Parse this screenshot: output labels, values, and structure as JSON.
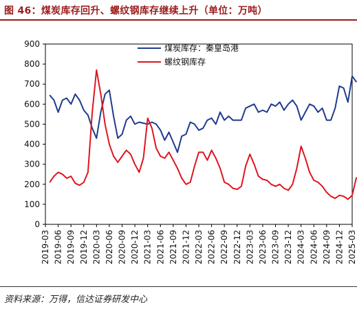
{
  "title": "图 46：煤炭库存回升、螺纹钢库存继续上升（单位：万吨）",
  "source": "资料来源：万得，信达证券研发中心",
  "chart_data": {
    "type": "line",
    "x_ticks": [
      "2019-03",
      "2019-06",
      "2019-09",
      "2019-12",
      "2020-03",
      "2020-06",
      "2020-09",
      "2020-12",
      "2021-03",
      "2021-06",
      "2021-09",
      "2021-12",
      "2022-03",
      "2022-06",
      "2022-09",
      "2022-12",
      "2023-03",
      "2023-06",
      "2023-09",
      "2023-12",
      "2024-03",
      "2024-06",
      "2024-09",
      "2024-12",
      "2025-03"
    ],
    "ylim": [
      0,
      900
    ],
    "y_ticks": [
      0,
      100,
      200,
      300,
      400,
      500,
      600,
      700,
      800,
      900
    ],
    "legend_position": "top-center",
    "series": [
      {
        "name": "煤炭库存：秦皇岛港",
        "color": "#1f3a8f",
        "points": [
          [
            "2019-04",
            645
          ],
          [
            "2019-05",
            620
          ],
          [
            "2019-06",
            560
          ],
          [
            "2019-07",
            620
          ],
          [
            "2019-08",
            630
          ],
          [
            "2019-09",
            600
          ],
          [
            "2019-10",
            650
          ],
          [
            "2019-11",
            620
          ],
          [
            "2019-12",
            570
          ],
          [
            "2020-01",
            545
          ],
          [
            "2020-02",
            480
          ],
          [
            "2020-03",
            430
          ],
          [
            "2020-04",
            560
          ],
          [
            "2020-05",
            650
          ],
          [
            "2020-06",
            670
          ],
          [
            "2020-07",
            540
          ],
          [
            "2020-08",
            430
          ],
          [
            "2020-09",
            450
          ],
          [
            "2020-10",
            520
          ],
          [
            "2020-11",
            540
          ],
          [
            "2020-12",
            500
          ],
          [
            "2021-01",
            510
          ],
          [
            "2021-02",
            505
          ],
          [
            "2021-03",
            500
          ],
          [
            "2021-04",
            510
          ],
          [
            "2021-05",
            500
          ],
          [
            "2021-06",
            470
          ],
          [
            "2021-07",
            420
          ],
          [
            "2021-08",
            460
          ],
          [
            "2021-09",
            410
          ],
          [
            "2021-10",
            360
          ],
          [
            "2021-11",
            440
          ],
          [
            "2021-12",
            450
          ],
          [
            "2022-01",
            510
          ],
          [
            "2022-02",
            500
          ],
          [
            "2022-03",
            470
          ],
          [
            "2022-04",
            480
          ],
          [
            "2022-05",
            520
          ],
          [
            "2022-06",
            530
          ],
          [
            "2022-07",
            500
          ],
          [
            "2022-08",
            560
          ],
          [
            "2022-09",
            520
          ],
          [
            "2022-10",
            540
          ],
          [
            "2022-11",
            520
          ],
          [
            "2022-12",
            520
          ],
          [
            "2023-01",
            520
          ],
          [
            "2023-02",
            580
          ],
          [
            "2023-03",
            590
          ],
          [
            "2023-04",
            600
          ],
          [
            "2023-05",
            560
          ],
          [
            "2023-06",
            570
          ],
          [
            "2023-07",
            560
          ],
          [
            "2023-08",
            600
          ],
          [
            "2023-09",
            590
          ],
          [
            "2023-10",
            610
          ],
          [
            "2023-11",
            570
          ],
          [
            "2023-12",
            600
          ],
          [
            "2024-01",
            620
          ],
          [
            "2024-02",
            590
          ],
          [
            "2024-03",
            520
          ],
          [
            "2024-04",
            560
          ],
          [
            "2024-05",
            600
          ],
          [
            "2024-06",
            590
          ],
          [
            "2024-07",
            560
          ],
          [
            "2024-08",
            580
          ],
          [
            "2024-09",
            520
          ],
          [
            "2024-10",
            520
          ],
          [
            "2024-11",
            580
          ],
          [
            "2024-12",
            690
          ],
          [
            "2025-01",
            680
          ],
          [
            "2025-02",
            610
          ],
          [
            "2025-03",
            740
          ],
          [
            "2025-04",
            710
          ]
        ]
      },
      {
        "name": "螺纹钢库存",
        "color": "#e0141e",
        "points": [
          [
            "2019-04",
            210
          ],
          [
            "2019-05",
            240
          ],
          [
            "2019-06",
            260
          ],
          [
            "2019-07",
            250
          ],
          [
            "2019-08",
            230
          ],
          [
            "2019-09",
            240
          ],
          [
            "2019-10",
            205
          ],
          [
            "2019-11",
            195
          ],
          [
            "2019-12",
            210
          ],
          [
            "2020-01",
            260
          ],
          [
            "2020-02",
            560
          ],
          [
            "2020-03",
            770
          ],
          [
            "2020-04",
            650
          ],
          [
            "2020-05",
            500
          ],
          [
            "2020-06",
            400
          ],
          [
            "2020-07",
            340
          ],
          [
            "2020-08",
            310
          ],
          [
            "2020-09",
            340
          ],
          [
            "2020-10",
            370
          ],
          [
            "2020-11",
            350
          ],
          [
            "2020-12",
            300
          ],
          [
            "2021-01",
            260
          ],
          [
            "2021-02",
            330
          ],
          [
            "2021-03",
            530
          ],
          [
            "2021-04",
            480
          ],
          [
            "2021-05",
            380
          ],
          [
            "2021-06",
            340
          ],
          [
            "2021-07",
            330
          ],
          [
            "2021-08",
            360
          ],
          [
            "2021-09",
            320
          ],
          [
            "2021-10",
            280
          ],
          [
            "2021-11",
            230
          ],
          [
            "2021-12",
            200
          ],
          [
            "2022-01",
            210
          ],
          [
            "2022-02",
            290
          ],
          [
            "2022-03",
            360
          ],
          [
            "2022-04",
            360
          ],
          [
            "2022-05",
            320
          ],
          [
            "2022-06",
            370
          ],
          [
            "2022-07",
            330
          ],
          [
            "2022-08",
            280
          ],
          [
            "2022-09",
            210
          ],
          [
            "2022-10",
            200
          ],
          [
            "2022-11",
            180
          ],
          [
            "2022-12",
            175
          ],
          [
            "2023-01",
            190
          ],
          [
            "2023-02",
            290
          ],
          [
            "2023-03",
            350
          ],
          [
            "2023-04",
            300
          ],
          [
            "2023-05",
            240
          ],
          [
            "2023-06",
            225
          ],
          [
            "2023-07",
            220
          ],
          [
            "2023-08",
            200
          ],
          [
            "2023-09",
            190
          ],
          [
            "2023-10",
            200
          ],
          [
            "2023-11",
            180
          ],
          [
            "2023-12",
            170
          ],
          [
            "2024-01",
            200
          ],
          [
            "2024-02",
            280
          ],
          [
            "2024-03",
            390
          ],
          [
            "2024-04",
            330
          ],
          [
            "2024-05",
            260
          ],
          [
            "2024-06",
            220
          ],
          [
            "2024-07",
            210
          ],
          [
            "2024-08",
            190
          ],
          [
            "2024-09",
            160
          ],
          [
            "2024-10",
            140
          ],
          [
            "2024-11",
            130
          ],
          [
            "2024-12",
            145
          ],
          [
            "2025-01",
            140
          ],
          [
            "2025-02",
            125
          ],
          [
            "2025-03",
            145
          ],
          [
            "2025-04",
            235
          ]
        ]
      }
    ]
  }
}
